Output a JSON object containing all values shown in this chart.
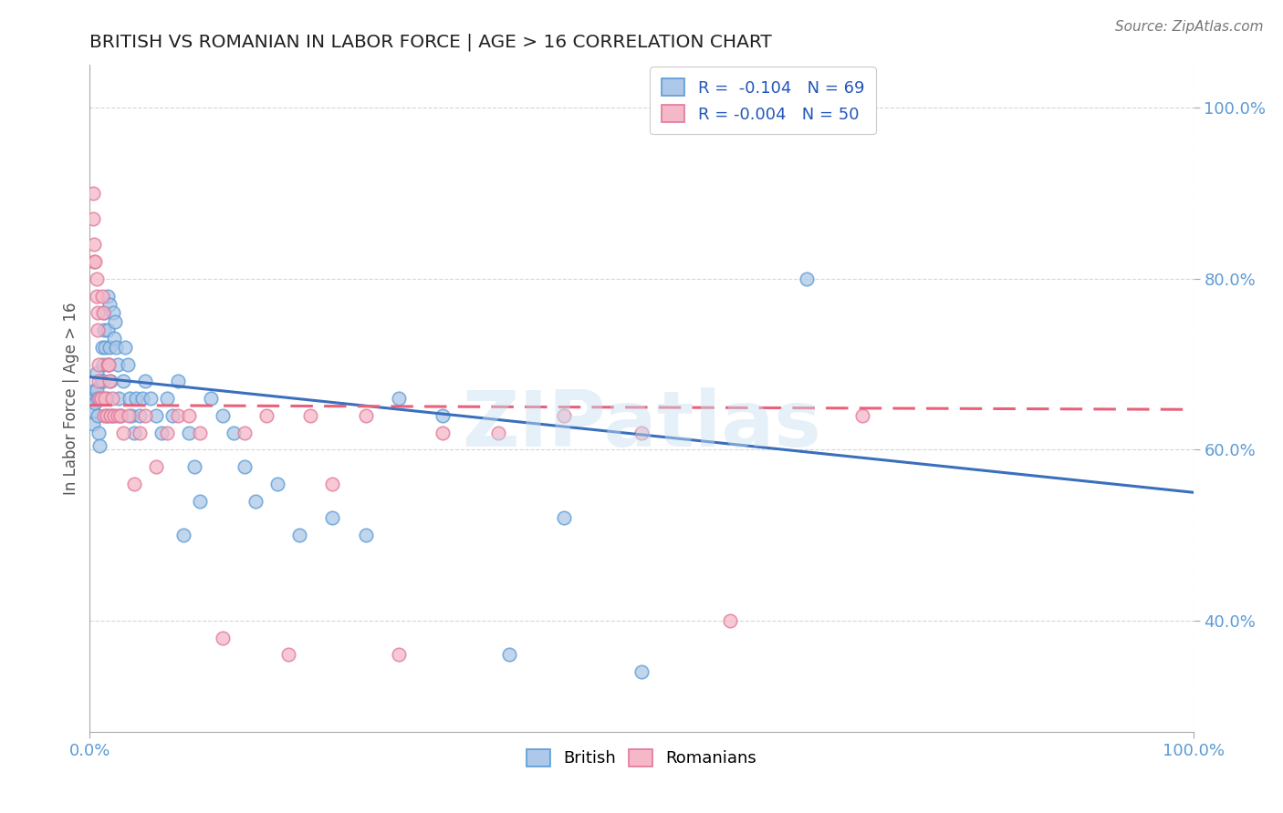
{
  "title": "BRITISH VS ROMANIAN IN LABOR FORCE | AGE > 16 CORRELATION CHART",
  "source": "Source: ZipAtlas.com",
  "ylabel": "In Labor Force | Age > 16",
  "xlim": [
    0.0,
    1.0
  ],
  "ylim": [
    0.27,
    1.05
  ],
  "ytick_labels": [
    "40.0%",
    "60.0%",
    "80.0%",
    "100.0%"
  ],
  "ytick_values": [
    0.4,
    0.6,
    0.8,
    1.0
  ],
  "xtick_labels": [
    "0.0%",
    "100.0%"
  ],
  "xtick_values": [
    0.0,
    1.0
  ],
  "legend_r_british": "R =  -0.104   N = 69",
  "legend_r_romanian": "R = -0.004   N = 50",
  "british_color": "#adc8e8",
  "british_edge": "#5b9bd5",
  "romanian_color": "#f5b8c8",
  "romanian_edge": "#e07898",
  "trendline_british_color": "#3a6fbd",
  "trendline_romanian_color": "#e8607a",
  "watermark": "ZIPatlas",
  "background_color": "#ffffff",
  "grid_color": "#cccccc",
  "british_x": [
    0.003,
    0.003,
    0.003,
    0.005,
    0.005,
    0.006,
    0.006,
    0.007,
    0.007,
    0.008,
    0.009,
    0.01,
    0.011,
    0.012,
    0.012,
    0.013,
    0.013,
    0.014,
    0.015,
    0.015,
    0.016,
    0.016,
    0.017,
    0.018,
    0.018,
    0.019,
    0.02,
    0.021,
    0.022,
    0.023,
    0.024,
    0.025,
    0.026,
    0.028,
    0.03,
    0.032,
    0.034,
    0.036,
    0.038,
    0.04,
    0.042,
    0.045,
    0.048,
    0.05,
    0.055,
    0.06,
    0.065,
    0.07,
    0.075,
    0.08,
    0.085,
    0.09,
    0.095,
    0.1,
    0.11,
    0.12,
    0.13,
    0.14,
    0.15,
    0.17,
    0.19,
    0.22,
    0.25,
    0.28,
    0.32,
    0.38,
    0.43,
    0.5,
    0.65
  ],
  "british_y": [
    0.66,
    0.645,
    0.63,
    0.67,
    0.655,
    0.69,
    0.67,
    0.66,
    0.64,
    0.62,
    0.605,
    0.68,
    0.72,
    0.7,
    0.68,
    0.76,
    0.74,
    0.72,
    0.66,
    0.64,
    0.78,
    0.74,
    0.7,
    0.77,
    0.72,
    0.68,
    0.64,
    0.76,
    0.73,
    0.75,
    0.72,
    0.7,
    0.66,
    0.64,
    0.68,
    0.72,
    0.7,
    0.66,
    0.64,
    0.62,
    0.66,
    0.64,
    0.66,
    0.68,
    0.66,
    0.64,
    0.62,
    0.66,
    0.64,
    0.68,
    0.5,
    0.62,
    0.58,
    0.54,
    0.66,
    0.64,
    0.62,
    0.58,
    0.54,
    0.56,
    0.5,
    0.52,
    0.5,
    0.66,
    0.64,
    0.36,
    0.52,
    0.34,
    0.8
  ],
  "romanian_x": [
    0.003,
    0.003,
    0.004,
    0.004,
    0.005,
    0.006,
    0.006,
    0.007,
    0.007,
    0.008,
    0.008,
    0.009,
    0.01,
    0.011,
    0.012,
    0.013,
    0.014,
    0.015,
    0.016,
    0.017,
    0.018,
    0.019,
    0.02,
    0.022,
    0.025,
    0.028,
    0.03,
    0.035,
    0.04,
    0.045,
    0.05,
    0.06,
    0.07,
    0.08,
    0.09,
    0.1,
    0.12,
    0.14,
    0.16,
    0.18,
    0.2,
    0.22,
    0.25,
    0.28,
    0.32,
    0.37,
    0.43,
    0.5,
    0.58,
    0.7
  ],
  "romanian_y": [
    0.9,
    0.87,
    0.84,
    0.82,
    0.82,
    0.8,
    0.78,
    0.76,
    0.74,
    0.7,
    0.68,
    0.66,
    0.66,
    0.78,
    0.76,
    0.64,
    0.66,
    0.64,
    0.7,
    0.7,
    0.68,
    0.64,
    0.66,
    0.64,
    0.64,
    0.64,
    0.62,
    0.64,
    0.56,
    0.62,
    0.64,
    0.58,
    0.62,
    0.64,
    0.64,
    0.62,
    0.38,
    0.62,
    0.64,
    0.36,
    0.64,
    0.56,
    0.64,
    0.36,
    0.62,
    0.62,
    0.64,
    0.62,
    0.4,
    0.64
  ]
}
